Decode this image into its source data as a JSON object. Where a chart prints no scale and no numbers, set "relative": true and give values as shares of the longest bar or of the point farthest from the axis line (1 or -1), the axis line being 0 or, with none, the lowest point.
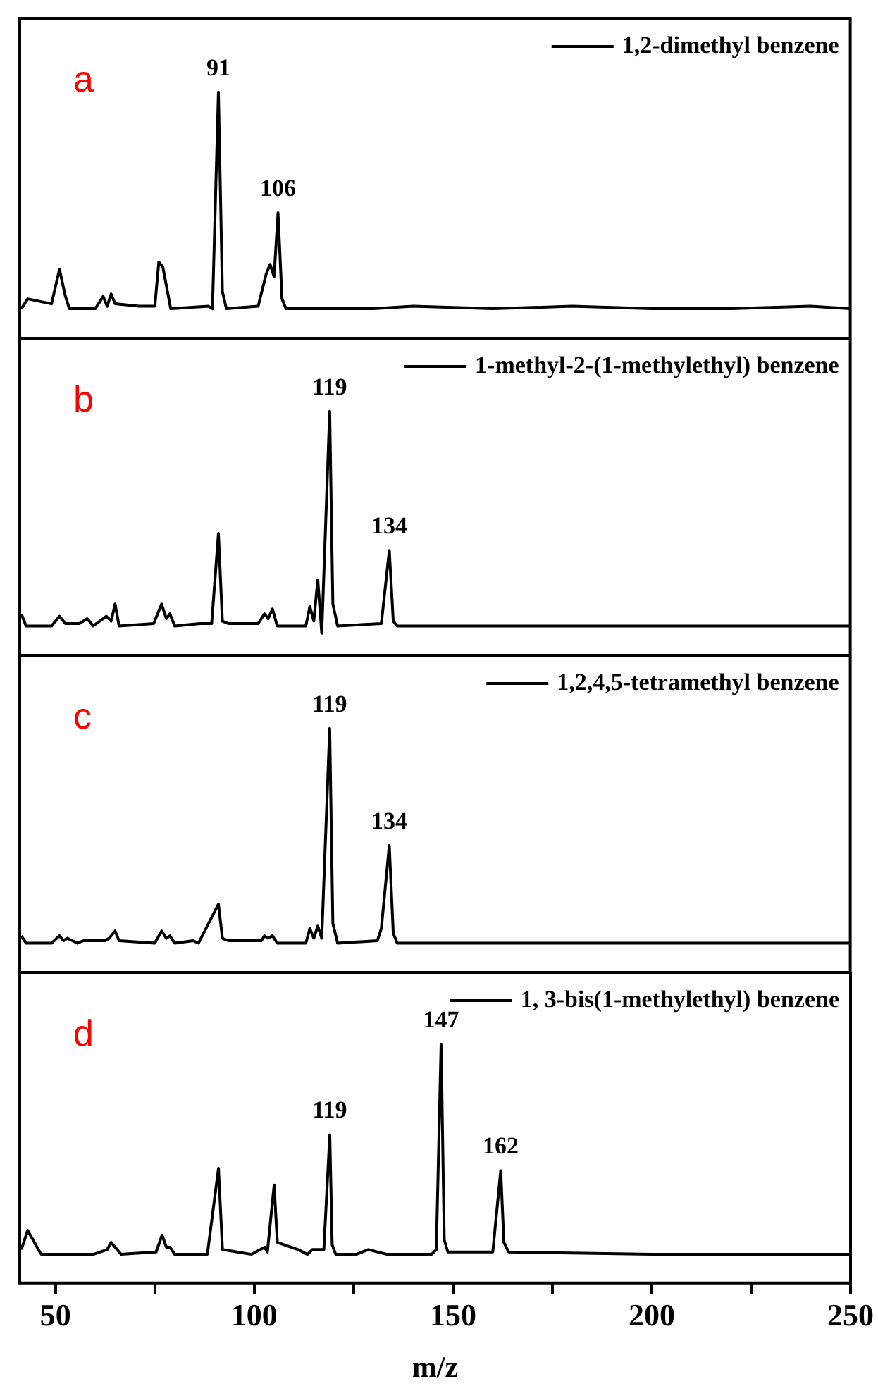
{
  "chart_data": [
    {
      "type": "line",
      "relative": true,
      "marker": "none",
      "legend": "top right",
      "tick_labels": false,
      "xlim": [
        41,
        250
      ],
      "xticks": [
        50,
        100,
        150,
        200,
        250
      ],
      "x": [
        41.4,
        43,
        49,
        51,
        52.5,
        53.5,
        60,
        62,
        63,
        64,
        65,
        71,
        75,
        76,
        77,
        79,
        88.5,
        89.5,
        91,
        92,
        93,
        101,
        103,
        104,
        105,
        106,
        107,
        108,
        130,
        140,
        160,
        180,
        200,
        220,
        240,
        250
      ],
      "series": [
        {
          "name": "1,2-dimethyl benzene",
          "color": "#000000",
          "values": [
            0.12,
            0.16,
            0.14,
            0.28,
            0.17,
            0.12,
            0.12,
            0.17,
            0.13,
            0.18,
            0.14,
            0.13,
            0.13,
            0.31,
            0.29,
            0.12,
            0.13,
            0.12,
            1.0,
            0.19,
            0.12,
            0.13,
            0.26,
            0.3,
            0.25,
            0.51,
            0.16,
            0.12,
            0.12,
            0.13,
            0.12,
            0.13,
            0.12,
            0.12,
            0.13,
            0.12
          ]
        }
      ],
      "annotations": [
        "a",
        {
          "text": "91",
          "x": 91,
          "y": 1.0
        },
        {
          "text": "106",
          "x": 106,
          "y": 0.51
        }
      ]
    },
    {
      "type": "line",
      "relative": true,
      "marker": "none",
      "legend": "top right",
      "tick_labels": false,
      "xlim": [
        41,
        250
      ],
      "xticks": [
        50,
        100,
        150,
        200,
        250
      ],
      "x": [
        41.4,
        42.6,
        49,
        51,
        52.5,
        56,
        58,
        59.5,
        62.8,
        64,
        65,
        66,
        74.7,
        76.7,
        77.9,
        78.8,
        80,
        86.4,
        89.3,
        91,
        92,
        93.5,
        101,
        102.6,
        103.5,
        104.6,
        105.8,
        113,
        114,
        115,
        116,
        117,
        119,
        119.8,
        121,
        132,
        134,
        135,
        136,
        160,
        200,
        250
      ],
      "series": [
        {
          "name": "1-methyl-2-(1-methylethyl) benzene",
          "color": "#000000",
          "values": [
            0.17,
            0.12,
            0.12,
            0.16,
            0.13,
            0.13,
            0.15,
            0.12,
            0.16,
            0.14,
            0.21,
            0.12,
            0.13,
            0.21,
            0.15,
            0.17,
            0.12,
            0.13,
            0.13,
            0.5,
            0.14,
            0.13,
            0.13,
            0.17,
            0.15,
            0.19,
            0.12,
            0.12,
            0.2,
            0.14,
            0.31,
            0.09,
            1.0,
            0.21,
            0.12,
            0.13,
            0.43,
            0.14,
            0.12,
            0.12,
            0.12,
            0.12
          ]
        }
      ],
      "annotations": [
        "b",
        {
          "text": "119",
          "x": 119,
          "y": 1.0
        },
        {
          "text": "134",
          "x": 134,
          "y": 0.43
        }
      ]
    },
    {
      "type": "line",
      "relative": true,
      "marker": "none",
      "legend": "top right",
      "tick_labels": false,
      "xlim": [
        41,
        250
      ],
      "xticks": [
        50,
        100,
        150,
        200,
        250
      ],
      "x": [
        41.4,
        42.6,
        49,
        51,
        52,
        53,
        55.5,
        57,
        62.5,
        63.5,
        65,
        66,
        75,
        76.7,
        77.9,
        78.8,
        80,
        84.6,
        86,
        91,
        92,
        93.5,
        101.8,
        102.6,
        103.5,
        104.6,
        105.8,
        113,
        114,
        115,
        116,
        117,
        119,
        119.8,
        121,
        131,
        132,
        134,
        135,
        136,
        250
      ],
      "series": [
        {
          "name": "1,2,4,5-tetramethyl benzene",
          "color": "#000000",
          "values": [
            0.15,
            0.12,
            0.12,
            0.15,
            0.13,
            0.14,
            0.12,
            0.13,
            0.13,
            0.14,
            0.17,
            0.13,
            0.12,
            0.17,
            0.14,
            0.15,
            0.12,
            0.13,
            0.12,
            0.28,
            0.14,
            0.13,
            0.13,
            0.15,
            0.14,
            0.15,
            0.12,
            0.12,
            0.18,
            0.14,
            0.19,
            0.14,
            1.0,
            0.2,
            0.12,
            0.13,
            0.18,
            0.52,
            0.16,
            0.12,
            0.12
          ]
        }
      ],
      "annotations": [
        "c",
        {
          "text": "119",
          "x": 119,
          "y": 1.0
        },
        {
          "text": "134",
          "x": 134,
          "y": 0.52
        }
      ]
    },
    {
      "type": "line",
      "relative": true,
      "marker": "none",
      "legend": "top right",
      "tick_labels": "x",
      "xlabel": "m/z",
      "xlim": [
        41,
        250
      ],
      "xticks": [
        50,
        {
          "value": 75,
          "label": null
        },
        100,
        {
          "value": 125,
          "label": null
        },
        150,
        {
          "value": 175,
          "label": null
        },
        200,
        {
          "value": 225,
          "label": null
        },
        250
      ],
      "x": [
        41.4,
        43,
        46.4,
        51.3,
        59.5,
        63,
        64,
        66.5,
        75.3,
        76.8,
        77.9,
        78.8,
        80,
        88.2,
        91,
        92,
        99.3,
        102.6,
        103.3,
        105,
        105.8,
        111,
        113.4,
        114.6,
        117.5,
        119,
        119.6,
        120.5,
        125.7,
        128.7,
        133.4,
        144.6,
        145.8,
        147,
        147.8,
        148.7,
        160,
        162,
        162.8,
        164,
        200,
        250
      ],
      "series": [
        {
          "name": "1, 3-bis(1-methylethyl) benzene",
          "color": "#000000",
          "values": [
            0.14,
            0.22,
            0.12,
            0.12,
            0.12,
            0.14,
            0.17,
            0.12,
            0.13,
            0.2,
            0.15,
            0.15,
            0.12,
            0.12,
            0.48,
            0.14,
            0.12,
            0.15,
            0.13,
            0.41,
            0.17,
            0.14,
            0.12,
            0.14,
            0.14,
            0.62,
            0.16,
            0.12,
            0.12,
            0.14,
            0.12,
            0.12,
            0.14,
            1.0,
            0.18,
            0.13,
            0.13,
            0.47,
            0.17,
            0.13,
            0.12,
            0.12
          ]
        }
      ],
      "annotations": [
        "d",
        {
          "text": "119",
          "x": 119,
          "y": 0.62
        },
        {
          "text": "147",
          "x": 147,
          "y": 1.0
        },
        {
          "text": "162",
          "x": 162,
          "y": 0.47
        }
      ]
    }
  ]
}
